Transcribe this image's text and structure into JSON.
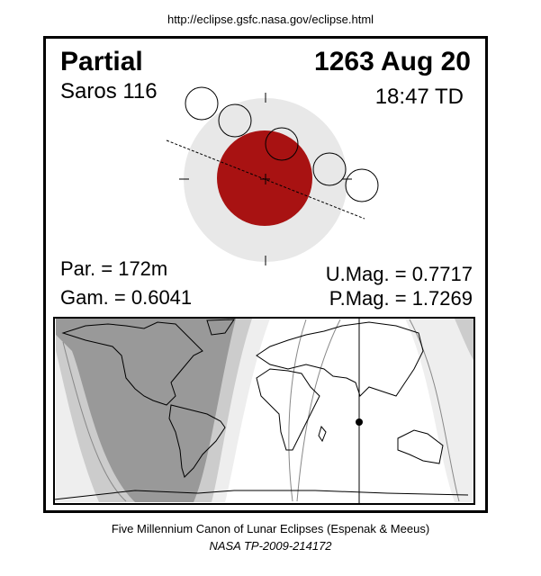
{
  "source_url": "http://eclipse.gsfc.nasa.gov/eclipse.html",
  "eclipse": {
    "type": "Partial",
    "date": "1263 Aug 20",
    "saros": "Saros 116",
    "time": "18:47 TD",
    "partial_duration": "Par. = 172m",
    "gamma": "Gam. = 0.6041",
    "umbral_magnitude": "U.Mag. = 0.7717",
    "penumbral_magnitude": "P.Mag. = 1.7269"
  },
  "colors": {
    "umbra": "#a81212",
    "penumbra": "#e8e8e8",
    "night_dark": "#999999",
    "band_mid": "#cccccc",
    "band_light": "#eeeeee"
  },
  "caption": {
    "line1": "Five Millennium Canon of Lunar Eclipses (Espenak & Meeus)",
    "line2": "NASA TP-2009-214172"
  }
}
